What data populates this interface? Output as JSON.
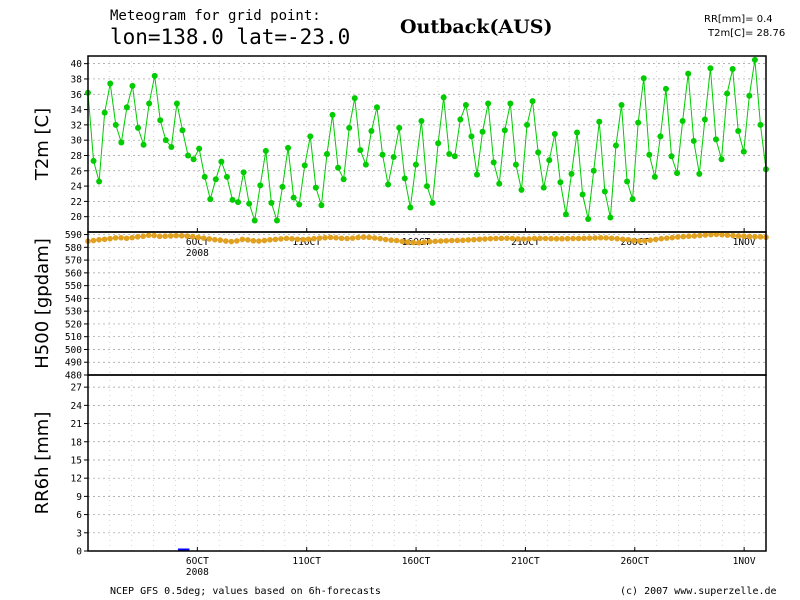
{
  "header": {
    "title_line1": "Meteogram for grid point:",
    "title_line2": "lon=138.0 lat=-23.0",
    "location": "Outback(AUS)",
    "stat_rr": "RR[mm]= 0.4",
    "stat_t2m": "T2m[C]= 28.76"
  },
  "footer": {
    "source": "NCEP GFS 0.5deg; values based on 6h-forecasts",
    "copyright": "(c) 2007 www.superzelle.de"
  },
  "colors": {
    "t2m": "#00cc00",
    "h500": "#e0a020",
    "rr": "#0000ff"
  },
  "chart_data": [
    {
      "type": "line",
      "ylabel": "T2m [C]",
      "ylim": [
        18,
        41
      ],
      "yticks": [
        20,
        22,
        24,
        26,
        28,
        30,
        32,
        34,
        36,
        38,
        40
      ],
      "x_range_days": [
        0,
        31
      ],
      "xtick_days": [
        5,
        10,
        15,
        20,
        25,
        30
      ],
      "xtick_labels": [
        "6OCT",
        "11OCT",
        "16OCT",
        "21OCT",
        "26OCT",
        "1NOV"
      ],
      "year_label": "2008",
      "grid": true,
      "series": [
        {
          "values": [
            36.2,
            27.3,
            24.6,
            33.6,
            37.4,
            32.0,
            29.7,
            34.3,
            37.1,
            31.6,
            29.4,
            34.8,
            38.4,
            32.6,
            30.0,
            29.1,
            34.8,
            31.3,
            28.0,
            27.5,
            28.9,
            25.2,
            22.3,
            24.9,
            27.2,
            25.2,
            22.2,
            21.9,
            25.8,
            21.7,
            19.5,
            24.1,
            28.6,
            21.8,
            19.5,
            23.9,
            29.0,
            22.5,
            21.6,
            26.7,
            30.5,
            23.8,
            21.5,
            28.2,
            33.3,
            26.4,
            24.9,
            31.6,
            35.5,
            28.7,
            26.8,
            31.2,
            34.3,
            28.1,
            24.2,
            27.8,
            31.6,
            25.0,
            21.2,
            26.8,
            32.5,
            24.0,
            21.8,
            29.6,
            35.6,
            28.2,
            27.9,
            32.7,
            34.6,
            30.5,
            25.5,
            31.1,
            34.8,
            27.1,
            24.3,
            31.3,
            34.8,
            26.8,
            23.5,
            32.0,
            35.1,
            28.4,
            23.8,
            27.4,
            30.8,
            24.5,
            20.3,
            25.6,
            31.0,
            22.9,
            19.7,
            26.0,
            32.4,
            23.3,
            19.9,
            29.3,
            34.6,
            24.6,
            22.3,
            32.3,
            38.1,
            28.1,
            25.2,
            30.5,
            36.7,
            27.9,
            25.7,
            32.5,
            38.7,
            29.9,
            25.6,
            32.7,
            39.4,
            30.1,
            27.5,
            36.1,
            39.3,
            31.2,
            28.5,
            35.8,
            40.5,
            32.0,
            26.2
          ]
        }
      ]
    },
    {
      "type": "line",
      "ylabel": "H500 [gpdam]",
      "ylim": [
        480,
        592
      ],
      "yticks": [
        480,
        490,
        500,
        510,
        520,
        530,
        540,
        550,
        560,
        570,
        580,
        590
      ],
      "x_range_days": [
        0,
        31
      ],
      "xtick_days": [
        5,
        10,
        15,
        20,
        25,
        30
      ],
      "xtick_labels": [
        "6OCT",
        "11OCT",
        "16OCT",
        "21OCT",
        "26OCT",
        "1NOV"
      ],
      "grid": true,
      "series": [
        {
          "values": [
            584.8,
            585.3,
            585.9,
            586.3,
            586.8,
            587.4,
            587.5,
            587.1,
            587.6,
            588.2,
            588.7,
            589.4,
            589.2,
            588.6,
            588.7,
            588.9,
            589.1,
            589.0,
            588.8,
            588.4,
            587.8,
            587.2,
            586.6,
            586.0,
            585.6,
            584.9,
            584.5,
            585.0,
            586.2,
            585.8,
            585.1,
            584.9,
            585.3,
            585.9,
            586.2,
            586.6,
            587.0,
            586.7,
            586.3,
            586.1,
            586.4,
            586.8,
            587.2,
            587.5,
            587.8,
            587.5,
            587.1,
            586.9,
            587.2,
            587.7,
            588.0,
            587.8,
            587.3,
            586.8,
            586.1,
            585.6,
            585.3,
            584.6,
            584.0,
            583.8,
            583.6,
            584.0,
            584.4,
            584.7,
            584.9,
            585.1,
            585.3,
            585.4,
            585.5,
            585.8,
            586.0,
            586.3,
            586.5,
            586.8,
            586.9,
            587.0,
            587.1,
            586.9,
            586.6,
            586.5,
            586.6,
            586.9,
            587.0,
            586.9,
            586.8,
            586.7,
            586.7,
            586.8,
            586.9,
            586.9,
            587.0,
            587.2,
            587.3,
            587.5,
            587.4,
            587.1,
            586.8,
            586.3,
            585.9,
            585.3,
            584.9,
            585.1,
            585.6,
            586.2,
            586.8,
            587.2,
            587.6,
            588.1,
            588.4,
            588.7,
            588.9,
            589.2,
            589.6,
            589.9,
            590.1,
            589.9,
            589.5,
            589.2,
            588.9,
            588.7,
            588.5,
            588.3,
            588.2,
            587.9
          ]
        }
      ]
    },
    {
      "type": "bar",
      "ylabel": "RR6h [mm]",
      "ylim": [
        0,
        29
      ],
      "yticks": [
        0,
        3,
        6,
        9,
        12,
        15,
        18,
        21,
        24,
        27
      ],
      "x_range_days": [
        0,
        31
      ],
      "xtick_days": [
        5,
        10,
        15,
        20,
        25,
        30
      ],
      "xtick_labels": [
        "6OCT",
        "11OCT",
        "16OCT",
        "21OCT",
        "26OCT",
        "1NOV"
      ],
      "year_label": "2008",
      "grid": true,
      "series": [
        {
          "x_days": [
            4.25,
            4.5
          ],
          "values": [
            0.2,
            0.2
          ]
        }
      ]
    }
  ]
}
